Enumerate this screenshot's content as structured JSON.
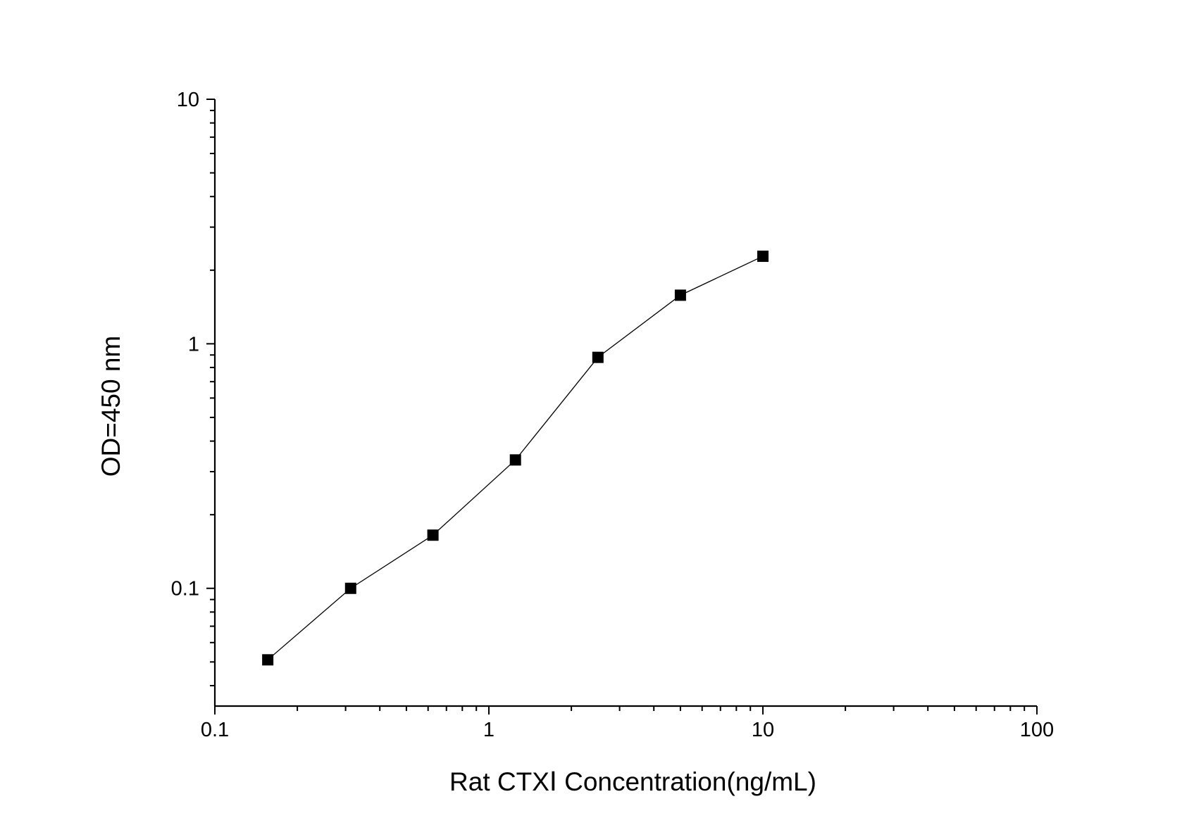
{
  "chart_data": {
    "type": "line",
    "title": "",
    "xlabel": "Rat  CTXⅠ Concentration(ng/mL)",
    "ylabel": "OD=450 nm",
    "xscale": "log",
    "yscale": "log",
    "xlim": [
      0.1,
      100
    ],
    "ylim": [
      0.033,
      10
    ],
    "x_ticks": [
      {
        "value": 0.1,
        "label": "0.1"
      },
      {
        "value": 1,
        "label": "1"
      },
      {
        "value": 10,
        "label": "10"
      },
      {
        "value": 100,
        "label": "100"
      }
    ],
    "y_ticks": [
      {
        "value": 0.1,
        "label": "0.1"
      },
      {
        "value": 1,
        "label": "1"
      },
      {
        "value": 10,
        "label": "10"
      }
    ],
    "grid": false,
    "legend": "none",
    "marker": "square",
    "color": "#000000",
    "series": [
      {
        "x": [
          0.156,
          0.313,
          0.625,
          1.25,
          2.5,
          5,
          10
        ],
        "y": [
          0.051,
          0.1,
          0.165,
          0.335,
          0.88,
          1.58,
          2.28
        ]
      }
    ]
  }
}
